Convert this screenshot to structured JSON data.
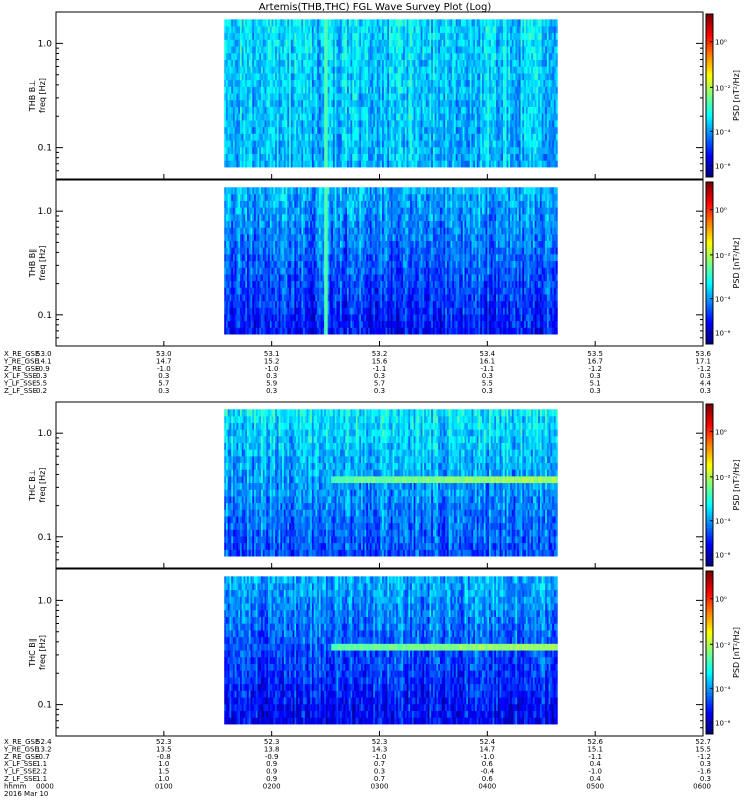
{
  "title": "Artemis(THB,THC) FGL Wave Survey Plot (Log)",
  "colorbar_label_html": "PSD [nT²/Hz]",
  "chart_data": {
    "type": "heatmap",
    "yscale": "log",
    "ylim": [
      0.05,
      2.0
    ],
    "ytick_values": [
      0.1,
      1.0
    ],
    "ytick_labels": [
      "0.1",
      "1.0"
    ],
    "ylabel": "freq [Hz]",
    "colorbar_ticks": [
      "10⁰",
      "10⁻²",
      "10⁻⁴",
      "10⁻⁶"
    ],
    "panels": [
      {
        "name": "THB B⊥",
        "probe": "THB",
        "data_start": 0.26,
        "data_end": 0.775,
        "style": "thb-perp"
      },
      {
        "name": "THB B∥",
        "probe": "THB",
        "data_start": 0.26,
        "data_end": 0.775,
        "style": "thb-par"
      },
      {
        "name": "THC B⊥",
        "probe": "THC",
        "data_start": 0.26,
        "data_end": 0.775,
        "style": "thc-perp"
      },
      {
        "name": "THC B∥",
        "probe": "THC",
        "data_start": 0.26,
        "data_end": 0.775,
        "style": "thc-par"
      }
    ],
    "thb_ephemeris": {
      "labels": [
        "X_RE_GSE",
        "Y_RE_GSE",
        "Z_RE_GSE",
        "X_LF_SSE",
        "Y_LF_SSE",
        "Z_LF_SSE"
      ],
      "columns": [
        [
          "53.0",
          "14.1",
          "-0.9",
          "0.3",
          "5.5",
          "0.2"
        ],
        [
          "53.0",
          "14.7",
          "-1.0",
          "0.3",
          "5.7",
          "0.3"
        ],
        [
          "53.1",
          "15.2",
          "-1.0",
          "0.3",
          "5.9",
          "0.3"
        ],
        [
          "53.2",
          "15.6",
          "-1.1",
          "0.3",
          "5.7",
          "0.3"
        ],
        [
          "53.4",
          "16.1",
          "-1.1",
          "0.3",
          "5.5",
          "0.3"
        ],
        [
          "53.5",
          "16.7",
          "-1.2",
          "0.3",
          "5.1",
          "0.3"
        ],
        [
          "53.6",
          "17.1",
          "-1.2",
          "0.3",
          "4.4",
          "0.3"
        ]
      ]
    },
    "thc_ephemeris": {
      "labels": [
        "X_RE_GSE",
        "Y_RE_GSE",
        "Z_RE_GSE",
        "X_LF_SSE",
        "Y_LF_SSE",
        "Z_LF_SSE",
        "hhmm"
      ],
      "columns": [
        [
          "52.4",
          "13.2",
          "-0.7",
          "1.1",
          "2.2",
          "1.1",
          "0000"
        ],
        [
          "52.3",
          "13.5",
          "-0.8",
          "1.0",
          "1.5",
          "1.0",
          "0100"
        ],
        [
          "52.3",
          "13.8",
          "-0.9",
          "0.9",
          "0.9",
          "0.9",
          "0200"
        ],
        [
          "52.3",
          "14.3",
          "-1.0",
          "0.7",
          "0.3",
          "0.7",
          "0300"
        ],
        [
          "52.4",
          "14.7",
          "-1.0",
          "0.6",
          "-0.4",
          "0.6",
          "0400"
        ],
        [
          "52.6",
          "15.1",
          "-1.1",
          "0.4",
          "-1.0",
          "0.4",
          "0500"
        ],
        [
          "52.7",
          "15.5",
          "-1.2",
          "0.3",
          "-1.6",
          "0.3",
          "0600"
        ]
      ]
    },
    "date_label": "2016 Mar 10"
  }
}
